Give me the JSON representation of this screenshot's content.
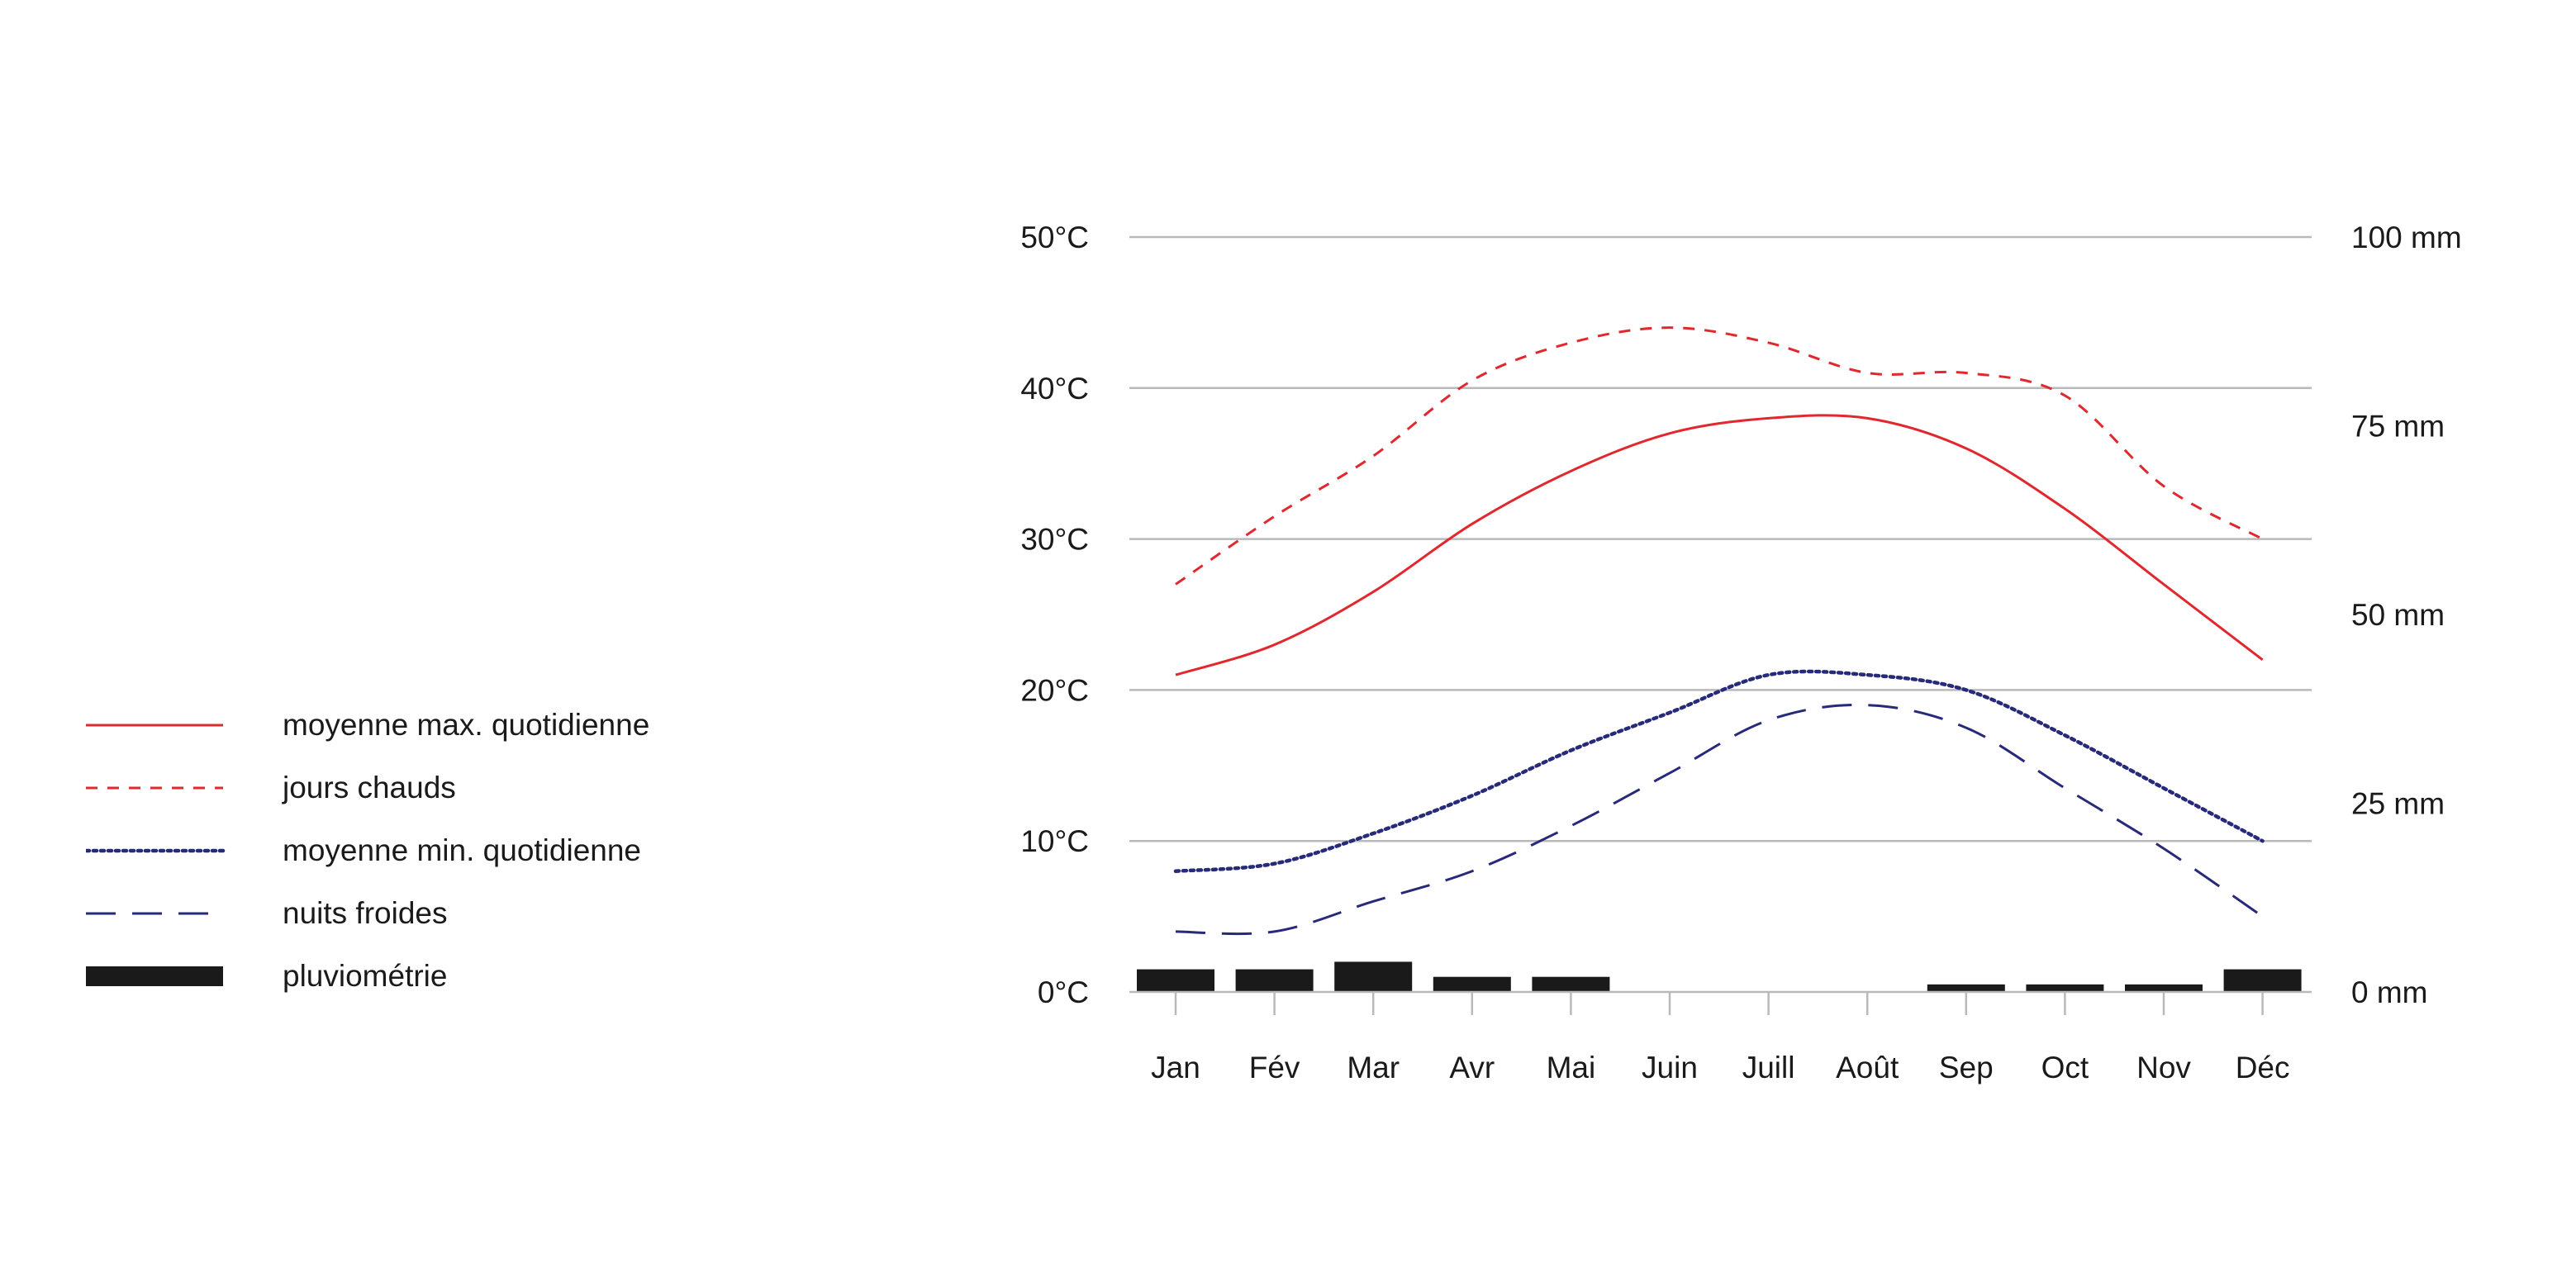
{
  "legend": [
    {
      "key": "max",
      "label": "moyenne max. quotidienne",
      "color": "#e0282e",
      "style": "solid"
    },
    {
      "key": "hot",
      "label": "jours chauds",
      "color": "#e0282e",
      "style": "dashed"
    },
    {
      "key": "min",
      "label": "moyenne min. quotidienne",
      "color": "#27297a",
      "style": "dotted"
    },
    {
      "key": "cold",
      "label": "nuits froides",
      "color": "#27297a",
      "style": "longdash"
    },
    {
      "key": "rain",
      "label": "pluviométrie",
      "color": "#1a1a1a",
      "style": "bar"
    }
  ],
  "chart_data": {
    "type": "line",
    "categories": [
      "Jan",
      "Fév",
      "Mar",
      "Avr",
      "Mai",
      "Juin",
      "Juill",
      "Août",
      "Sep",
      "Oct",
      "Nov",
      "Déc"
    ],
    "series": [
      {
        "name": "moyenne max. quotidienne",
        "axis": "left",
        "unit": "°C",
        "values": [
          21,
          23,
          26.5,
          31,
          34.5,
          37,
          38,
          38,
          36,
          32,
          27,
          22
        ]
      },
      {
        "name": "jours chauds",
        "axis": "left",
        "unit": "°C",
        "values": [
          27,
          31.5,
          35.5,
          40.5,
          43,
          44,
          43,
          41,
          41,
          39.5,
          33.5,
          30
        ]
      },
      {
        "name": "moyenne min. quotidienne",
        "axis": "left",
        "unit": "°C",
        "values": [
          8,
          8.5,
          10.5,
          13,
          16,
          18.5,
          21,
          21,
          20,
          17,
          13.5,
          10
        ]
      },
      {
        "name": "nuits froides",
        "axis": "left",
        "unit": "°C",
        "values": [
          4,
          4,
          6,
          8,
          11,
          14.5,
          18,
          19,
          17.5,
          13.5,
          9.5,
          5
        ]
      },
      {
        "name": "pluviométrie",
        "type": "bar",
        "axis": "right",
        "unit": "mm",
        "values": [
          3,
          3,
          4,
          2,
          2,
          0,
          0,
          0,
          1,
          1,
          1,
          3
        ]
      }
    ],
    "y_left": {
      "range": [
        0,
        50
      ],
      "ticks": [
        0,
        10,
        20,
        30,
        40,
        50
      ],
      "tick_labels": [
        "0°C",
        "10°C",
        "20°C",
        "30°C",
        "40°C",
        "50°C"
      ]
    },
    "y_right": {
      "range": [
        0,
        100
      ],
      "ticks": [
        0,
        25,
        50,
        75,
        100
      ],
      "tick_labels": [
        "0 mm",
        "25 mm",
        "50 mm",
        "75 mm",
        "100 mm"
      ]
    },
    "grid": true,
    "legend_position": "left",
    "title": "",
    "xlabel": "",
    "ylabel": ""
  }
}
